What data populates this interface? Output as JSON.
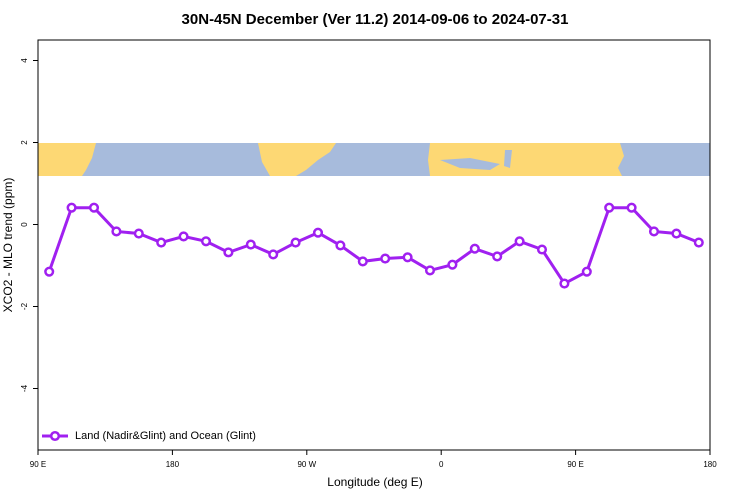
{
  "chart_data": {
    "type": "line",
    "title": "30N-45N December (Ver 11.2)   2014-09-06 to 2024-07-31",
    "x_label": "Longitude (deg E)",
    "y_label": "XCO2 - MLO trend (ppm)",
    "xlim": [
      90,
      540
    ],
    "ylim": [
      -5.5,
      4.5
    ],
    "xticks": [
      {
        "value": 90,
        "label": "90 E"
      },
      180,
      {
        "value": 270,
        "label": "90 W"
      },
      {
        "value": 360,
        "label": "0"
      },
      {
        "value": 450,
        "label": "90 E"
      },
      {
        "value": 540,
        "label": "180"
      }
    ],
    "yticks": [
      -4,
      -2,
      0,
      2,
      4
    ],
    "legend_position": "bottom-left",
    "x": [
      97.5,
      112.5,
      127.5,
      142.5,
      157.5,
      172.5,
      187.5,
      202.5,
      217.5,
      232.5,
      247.5,
      262.5,
      277.5,
      292.5,
      307.5,
      322.5,
      337.5,
      352.5,
      367.5,
      382.5,
      397.5,
      412.5,
      427.5,
      442.5,
      457.5,
      472.5,
      487.5,
      502.5,
      517.5,
      532.5
    ],
    "series": [
      {
        "name": "Land (Nadir&Glint) and Ocean (Glint)",
        "color": "#a020f0",
        "values": [
          -1.15,
          0.41,
          0.41,
          -0.17,
          -0.22,
          -0.44,
          -0.29,
          -0.41,
          -0.68,
          -0.49,
          -0.73,
          -0.44,
          -0.2,
          -0.51,
          -0.9,
          -0.83,
          -0.8,
          -1.12,
          -0.98,
          -0.59,
          -0.78,
          -0.41,
          -0.61,
          -1.44,
          -1.15,
          0.41,
          0.41,
          -0.17,
          -0.22,
          -0.44
        ]
      }
    ]
  }
}
